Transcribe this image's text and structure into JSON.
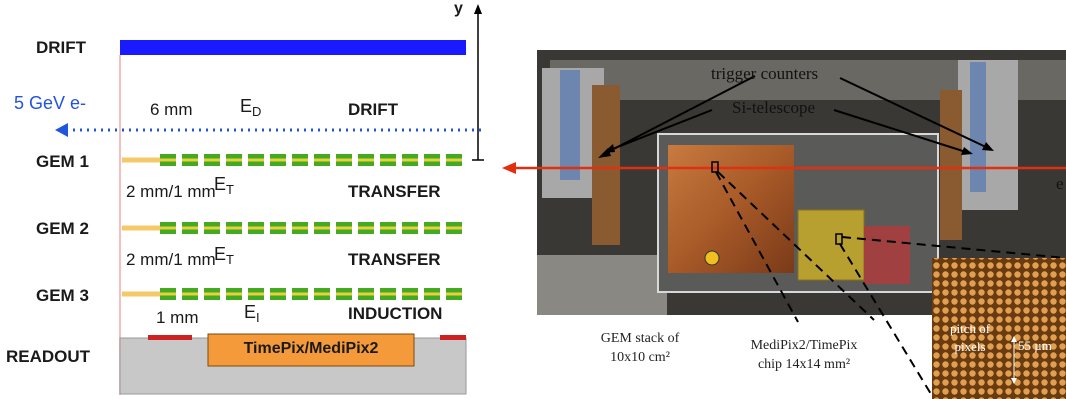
{
  "left_diagram": {
    "axis_label": "y",
    "layers": {
      "drift": "DRIFT",
      "gem1": "GEM 1",
      "gem2": "GEM 2",
      "gem3": "GEM 3",
      "readout": "READOUT"
    },
    "beam_label": "5 GeV e-",
    "gaps": [
      {
        "size": "6 mm",
        "field_main": "E",
        "field_sub": "D",
        "region": "DRIFT"
      },
      {
        "size": "2 mm/1 mm",
        "field_main": "E",
        "field_sub": "T",
        "region": "TRANSFER"
      },
      {
        "size": "2 mm/1 mm",
        "field_main": "E",
        "field_sub": "T",
        "region": "TRANSFER"
      },
      {
        "size": "1 mm",
        "field_main": "E",
        "field_sub": "I",
        "region": "INDUCTION"
      }
    ],
    "chip_label": "TimePix/MediPix2",
    "colors": {
      "drift_bar": "#1a1aff",
      "gem_green": "#44aa22",
      "gem_yellow": "#f0d040",
      "chip": "#f59a3a",
      "readout": "#c8c8c8",
      "beam": "#2255dd"
    }
  },
  "photo": {
    "labels": {
      "trigger": "trigger counters",
      "telescope": "Si-telescope",
      "electron": "e"
    },
    "captions": {
      "gem_line1": "GEM stack of",
      "gem_line2": "10x10 cm²",
      "chip_line1": "MediPix2/TimePix",
      "chip_line2": "chip 14x14 mm²"
    },
    "inset": {
      "pitch_line1": "pitch of",
      "pitch_line2": "pixels",
      "pitch_value": "55 µm"
    },
    "colors": {
      "beam_line": "#e03010"
    }
  }
}
